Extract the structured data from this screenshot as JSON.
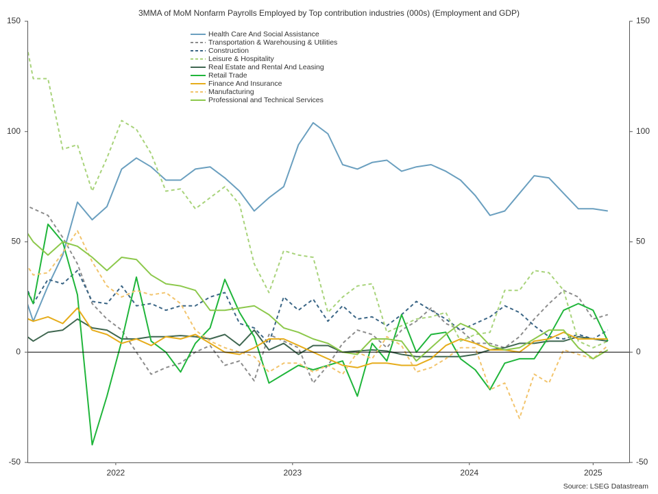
{
  "chart_data": {
    "type": "line",
    "title": "3MMA of MoM Nonfarm Payrolls Employed by Top contribution industries (000s) (Employment and GDP)",
    "source": "Source: LSEG Datastream",
    "categories": [
      null,
      null,
      null,
      null,
      null,
      null,
      null,
      null,
      null,
      null,
      null,
      null,
      null,
      null,
      null,
      null,
      null,
      null,
      null,
      null,
      null,
      null,
      null,
      null,
      null,
      null,
      null,
      null,
      null,
      null,
      null,
      null,
      null,
      null,
      null,
      null,
      null,
      null,
      null,
      null,
      null
    ],
    "xlim": [
      0.65,
      41.45
    ],
    "xticks": [
      {
        "value": 6.6,
        "label": "2022"
      },
      {
        "value": 18.6,
        "label": "2023"
      },
      {
        "value": 30.6,
        "label": "2024"
      },
      {
        "value": 39,
        "label": "2025"
      }
    ],
    "ylim": [
      -50,
      150
    ],
    "yticks": [
      150,
      100,
      50,
      0,
      -50
    ],
    "y2lim": [
      -50,
      150
    ],
    "y2ticks": [
      150,
      100,
      50,
      0,
      -50
    ],
    "zero_line": true,
    "legend": "top",
    "series": [
      {
        "name": "Health Care And Social Assistance",
        "color": "#6a9fbf",
        "dashed": false,
        "values": [
          34,
          14,
          30,
          44,
          68,
          60,
          66,
          83,
          88,
          84,
          78,
          78,
          83,
          84,
          79,
          73,
          64,
          70,
          75,
          94,
          104,
          99,
          85,
          83,
          86,
          87,
          82,
          84,
          85,
          82,
          78,
          71,
          62,
          64,
          72,
          80,
          79,
          72,
          65,
          65,
          64
        ]
      },
      {
        "name": "Transportation & Warehousing & Utilities",
        "color": "#8c8c8c",
        "dashed": true,
        "values": [
          68,
          65,
          62,
          52,
          40,
          22,
          15,
          10,
          0,
          -10,
          -7,
          -5,
          0,
          3,
          -6,
          -4,
          -13,
          8,
          5,
          2,
          -14,
          -6,
          4,
          10,
          8,
          2,
          10,
          14,
          20,
          13,
          10,
          4,
          4,
          2,
          7,
          15,
          22,
          28,
          25,
          15,
          17
        ]
      },
      {
        "name": "Construction",
        "color": "#3a6585",
        "dashed": true,
        "values": [
          38,
          22,
          33,
          31,
          37,
          23,
          22,
          30,
          21,
          22,
          19,
          21,
          21,
          25,
          27,
          13,
          11,
          4,
          25,
          19,
          24,
          14,
          21,
          15,
          16,
          12,
          17,
          23,
          19,
          15,
          10,
          13,
          16,
          21,
          18,
          12,
          7,
          6,
          8,
          6,
          10
        ]
      },
      {
        "name": "Leisure & Hospitality",
        "color": "#a8d37a",
        "dashed": true,
        "values": [
          158,
          124,
          124,
          92,
          94,
          73,
          88,
          105,
          101,
          90,
          73,
          74,
          65,
          70,
          75,
          67,
          40,
          27,
          46,
          44,
          43,
          18,
          25,
          30,
          31,
          9,
          12,
          15,
          16,
          18,
          5,
          8,
          9,
          28,
          28,
          37,
          36,
          28,
          5,
          2,
          5
        ]
      },
      {
        "name": "Real Estate and Rental And Leasing",
        "color": "#3f6650",
        "dashed": false,
        "values": [
          10,
          5,
          9,
          10,
          15,
          11,
          10,
          6,
          6,
          7,
          7,
          7.5,
          7,
          6,
          8,
          3,
          10,
          1,
          4,
          -1,
          3,
          3,
          0,
          0.5,
          1,
          0.5,
          -1,
          -2,
          -2,
          -2,
          -2,
          -1,
          1,
          2,
          4,
          4,
          5,
          5,
          7,
          6,
          5
        ]
      },
      {
        "name": "Retail Trade",
        "color": "#1fb53a",
        "dashed": false,
        "values": [
          36,
          22,
          58,
          50,
          26,
          -42,
          -20,
          5,
          34,
          5,
          0,
          -9,
          4,
          11,
          33,
          18,
          7,
          -14,
          -10,
          -6,
          -8,
          -6,
          -4,
          -20,
          4,
          -4,
          17,
          0,
          8,
          9,
          -3,
          -8,
          -17,
          -5,
          -3,
          -3,
          7,
          19,
          22,
          19,
          5
        ]
      },
      {
        "name": "Finance And Insurance",
        "color": "#e6ac1a",
        "dashed": false,
        "values": [
          17,
          14,
          16,
          13,
          20,
          10,
          8,
          4,
          6,
          3,
          7,
          6,
          8,
          4,
          0,
          -1,
          2,
          6,
          6,
          3,
          0,
          -3,
          -6,
          -7,
          -5,
          -5,
          -6,
          -6,
          -3,
          3,
          6,
          4,
          1,
          1,
          0,
          5,
          6,
          9,
          6,
          6,
          6
        ]
      },
      {
        "name": "Manufacturing",
        "color": "#f2c46c",
        "dashed": true,
        "values": [
          45,
          35,
          36,
          45,
          55,
          41,
          30,
          25,
          28,
          26,
          27,
          22,
          10,
          5,
          2,
          0,
          -2,
          -9,
          -5,
          -5,
          -9,
          -6,
          -10,
          0,
          -3,
          7,
          3,
          -9,
          -7,
          -3,
          2,
          2,
          -17,
          -14,
          -30,
          -10,
          -14,
          1,
          -1,
          -3,
          3
        ]
      },
      {
        "name": "Professional and Technical Services",
        "color": "#8cc84b",
        "dashed": false,
        "values": [
          60,
          50,
          44,
          50,
          48,
          43,
          37,
          43,
          42,
          35,
          31,
          30,
          28,
          19,
          19,
          20,
          21,
          17,
          11,
          9,
          6,
          4,
          0,
          -1,
          6,
          6,
          5,
          -4,
          2,
          8,
          13,
          10,
          3,
          1,
          2,
          6,
          10,
          10,
          2,
          -3,
          1
        ]
      }
    ]
  }
}
